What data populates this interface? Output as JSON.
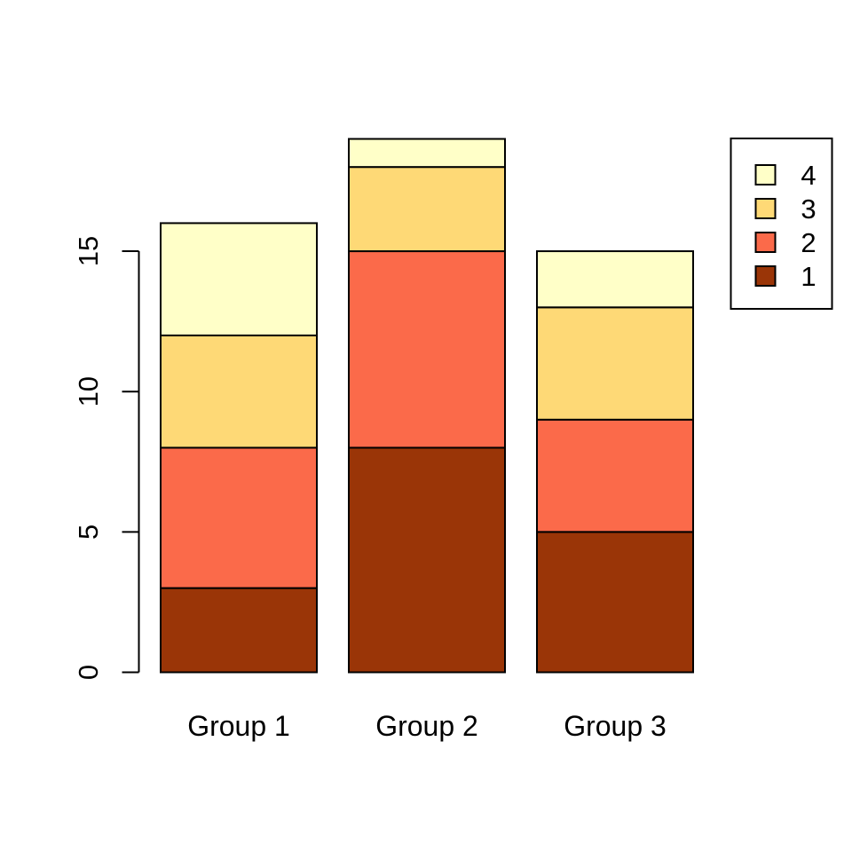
{
  "chart_data": {
    "type": "bar",
    "stacked": true,
    "title": "",
    "xlabel": "",
    "ylabel": "",
    "categories": [
      "Group 1",
      "Group 2",
      "Group 3"
    ],
    "series": [
      {
        "name": "1",
        "color": "#9A3507",
        "values": [
          3,
          8,
          5
        ]
      },
      {
        "name": "2",
        "color": "#FB6A4A",
        "values": [
          5,
          7,
          4
        ]
      },
      {
        "name": "3",
        "color": "#FED976",
        "values": [
          4,
          3,
          4
        ]
      },
      {
        "name": "4",
        "color": "#FFFFC8",
        "values": [
          4,
          1,
          2
        ]
      }
    ],
    "stack_totals": [
      16,
      19,
      15
    ],
    "yticks": [
      0,
      5,
      10,
      15
    ],
    "ylim": [
      0,
      19
    ],
    "grid": false,
    "legend": {
      "position": "top-right",
      "entries": [
        "4",
        "3",
        "2",
        "1"
      ],
      "border": true
    },
    "colors": {
      "bar_border": "#000000",
      "axis": "#000000",
      "background": "#FFFFFF",
      "legend_background": "#FFFFFF"
    }
  }
}
